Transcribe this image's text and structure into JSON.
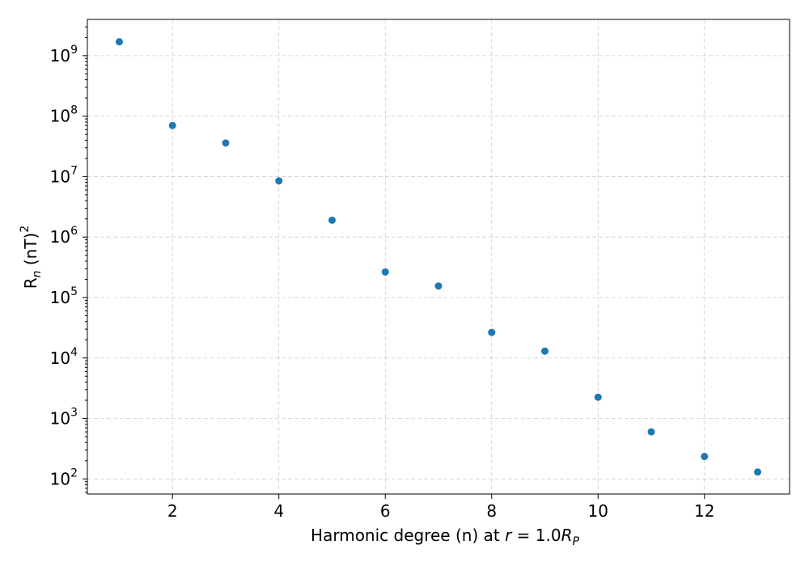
{
  "chart_data": {
    "type": "scatter",
    "title": "",
    "xlabel": "Harmonic degree (n) at ",
    "xlabel_math": {
      "var": "r",
      "eq": " = 1.0",
      "R": "R",
      "sub": "P"
    },
    "ylabel": {
      "base": "R",
      "sub": "n",
      "unit": " (nT)",
      "sup": "2"
    },
    "yscale": "log",
    "xlim": [
      0.4,
      13.6
    ],
    "ylim_log10": [
      1.75,
      9.6
    ],
    "xticks": [
      2,
      4,
      6,
      8,
      10,
      12
    ],
    "yticks": [
      {
        "base": "10",
        "exp": "2",
        "value": 100
      },
      {
        "base": "10",
        "exp": "3",
        "value": 1000
      },
      {
        "base": "10",
        "exp": "4",
        "value": 10000
      },
      {
        "base": "10",
        "exp": "5",
        "value": 100000
      },
      {
        "base": "10",
        "exp": "6",
        "value": 1000000
      },
      {
        "base": "10",
        "exp": "7",
        "value": 10000000
      },
      {
        "base": "10",
        "exp": "8",
        "value": 100000000
      },
      {
        "base": "10",
        "exp": "9",
        "value": 1000000000
      }
    ],
    "grid": true,
    "marker_color": "#1f77b4",
    "series": [
      {
        "x": [
          1,
          2,
          3,
          4,
          5,
          6,
          7,
          8,
          9,
          10,
          11,
          12,
          13
        ],
        "y": [
          1700000000,
          70000000,
          36000000,
          8500000,
          1900000,
          265000,
          155000,
          26500,
          13000,
          2250,
          600,
          235,
          130
        ]
      }
    ]
  }
}
